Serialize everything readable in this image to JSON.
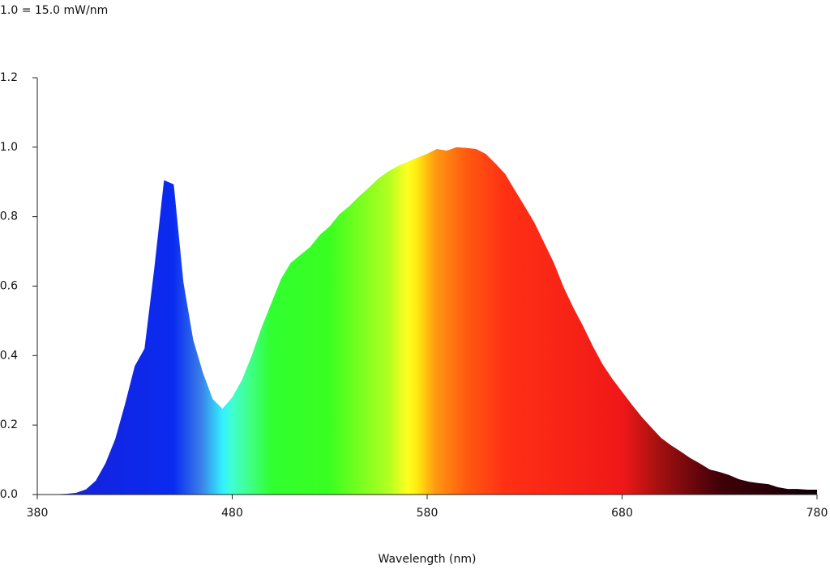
{
  "chart_data": {
    "type": "area",
    "title": "1.0 = 15.0 mW/nm",
    "x_label": "Wavelength (nm)",
    "x": [
      380,
      385,
      390,
      395,
      400,
      405,
      410,
      415,
      420,
      425,
      430,
      435,
      440,
      445,
      450,
      455,
      460,
      465,
      470,
      475,
      480,
      485,
      490,
      495,
      500,
      505,
      510,
      515,
      520,
      525,
      530,
      535,
      540,
      545,
      550,
      555,
      560,
      565,
      570,
      575,
      580,
      585,
      590,
      595,
      600,
      605,
      610,
      615,
      620,
      625,
      630,
      635,
      640,
      645,
      650,
      655,
      660,
      665,
      670,
      675,
      680,
      685,
      690,
      695,
      700,
      705,
      710,
      715,
      720,
      725,
      730,
      735,
      740,
      745,
      750,
      755,
      760,
      765,
      770,
      775,
      780
    ],
    "values": [
      0,
      0,
      0.001,
      0.002,
      0.005,
      0.015,
      0.04,
      0.09,
      0.16,
      0.26,
      0.37,
      0.42,
      0.65,
      0.905,
      0.893,
      0.61,
      0.445,
      0.35,
      0.275,
      0.247,
      0.28,
      0.33,
      0.4,
      0.48,
      0.55,
      0.62,
      0.667,
      0.69,
      0.713,
      0.748,
      0.772,
      0.807,
      0.83,
      0.858,
      0.883,
      0.91,
      0.93,
      0.946,
      0.958,
      0.97,
      0.981,
      0.995,
      0.99,
      1.0,
      0.998,
      0.995,
      0.981,
      0.953,
      0.923,
      0.876,
      0.83,
      0.783,
      0.725,
      0.667,
      0.597,
      0.538,
      0.485,
      0.427,
      0.375,
      0.333,
      0.296,
      0.259,
      0.224,
      0.193,
      0.163,
      0.142,
      0.124,
      0.105,
      0.089,
      0.072,
      0.065,
      0.056,
      0.044,
      0.037,
      0.033,
      0.03,
      0.021,
      0.016,
      0.016,
      0.014,
      0.014
    ],
    "xlim": [
      380,
      780
    ],
    "xticks": [
      380,
      480,
      580,
      680,
      780
    ],
    "ylim": [
      0,
      1.2
    ],
    "yticks": [
      {
        "value": 0,
        "label": "0.0"
      },
      {
        "value": 0.2,
        "label": "0.2"
      },
      {
        "value": 0.4,
        "label": "0.4"
      },
      {
        "value": 0.6,
        "label": "0.6"
      },
      {
        "value": 0.8,
        "label": "0.8"
      },
      {
        "value": 1.0,
        "label": "1.0"
      },
      {
        "value": 1.2,
        "label": "1.2"
      }
    ]
  }
}
